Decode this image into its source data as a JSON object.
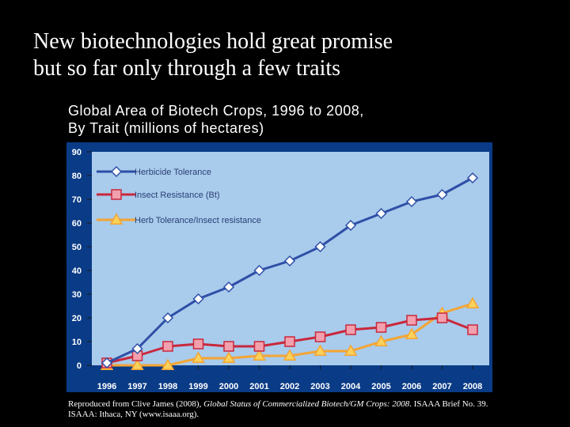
{
  "slide": {
    "title_line1": "New biotechnologies hold great promise",
    "title_line2": "but so far only through a few traits",
    "caption_line1": "Global Area of Biotech Crops, 1996 to 2008,",
    "caption_line2": "By Trait (millions of hectares)"
  },
  "source": {
    "prefix": "Reproduced from Clive James (2008), ",
    "italic": "Global Status of Commercialized Biotech/GM Crops: 2008",
    "suffix": ". ISAAA Brief No. 39. ISAAA: Ithaca, NY (www.isaaa.org)."
  },
  "colors": {
    "plot_background": "#a9cbec",
    "frame_background": "#0a3b86",
    "herbicide_line": "#2e4fa6",
    "herbicide_marker": "#ffffff",
    "insect_line": "#c9283c",
    "insect_marker": "#f2a0ad",
    "stacked_line": "#f4a533",
    "stacked_marker": "#f9d25c"
  },
  "chart_data": {
    "type": "line",
    "title": "Global Area of Biotech Crops, 1996 to 2008, By Trait (millions of hectares)",
    "xlabel": "",
    "ylabel": "",
    "ylim": [
      0,
      90
    ],
    "yticks": [
      "0",
      "10",
      "20",
      "30",
      "40",
      "50",
      "60",
      "70",
      "80",
      "90"
    ],
    "categories": [
      "1996",
      "1997",
      "1998",
      "1999",
      "2000",
      "2001",
      "2002",
      "2003",
      "2004",
      "2005",
      "2006",
      "2007",
      "2008"
    ],
    "legend_position": "top-left",
    "grid": false,
    "series": [
      {
        "name": "Herbicide Tolerance",
        "marker": "diamond",
        "values": [
          1,
          7,
          20,
          28,
          33,
          40,
          44,
          50,
          59,
          64,
          69,
          72,
          79
        ]
      },
      {
        "name": "Insect Resistance (Bt)",
        "marker": "square",
        "values": [
          1,
          4,
          8,
          9,
          8,
          8,
          10,
          12,
          15,
          16,
          19,
          20,
          15
        ]
      },
      {
        "name": "Herb Tolerance/Insect resistance",
        "marker": "triangle",
        "values": [
          0,
          0,
          0,
          3,
          3,
          4,
          4,
          6,
          6,
          10,
          13,
          22,
          26
        ]
      }
    ]
  }
}
